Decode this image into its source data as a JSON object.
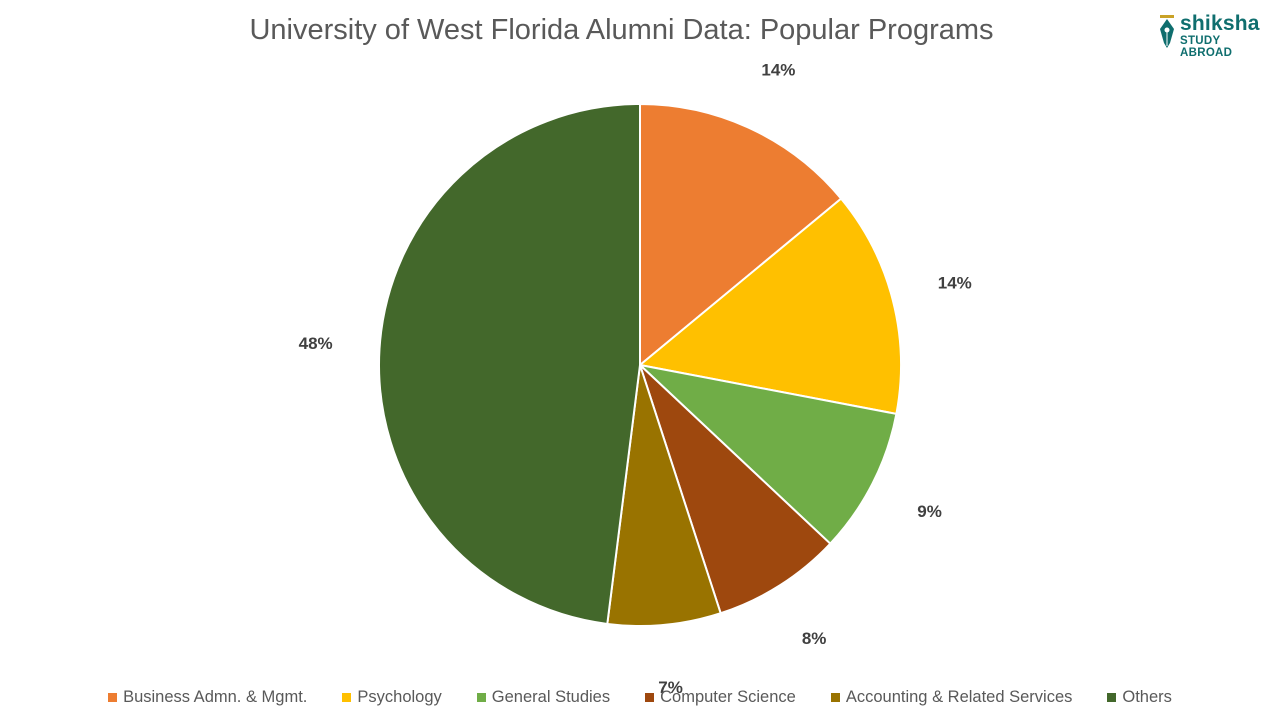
{
  "chart_data": {
    "type": "pie",
    "title": "University of West Florida Alumni Data: Popular Programs",
    "slices": [
      {
        "label": "Business Admn. & Mgmt.",
        "value": 14,
        "value_label": "14%",
        "color": "#ED7D31"
      },
      {
        "label": "Psychology",
        "value": 14,
        "value_label": "14%",
        "color": "#FFC000"
      },
      {
        "label": "General Studies",
        "value": 9,
        "value_label": "9%",
        "color": "#70AD47"
      },
      {
        "label": "Computer Science",
        "value": 8,
        "value_label": "8%",
        "color": "#9E480E"
      },
      {
        "label": "Accounting & Related Services",
        "value": 7,
        "value_label": "7%",
        "color": "#997300"
      },
      {
        "label": "Others",
        "value": 48,
        "value_label": "48%",
        "color": "#43682B"
      }
    ],
    "start_angle": "12 o'clock",
    "direction": "clockwise",
    "legend_position": "bottom"
  },
  "logo": {
    "name": "shiksha",
    "tagline": "STUDY ABROAD",
    "icon": "pen-nib-icon",
    "color": "#0F6E6E"
  }
}
